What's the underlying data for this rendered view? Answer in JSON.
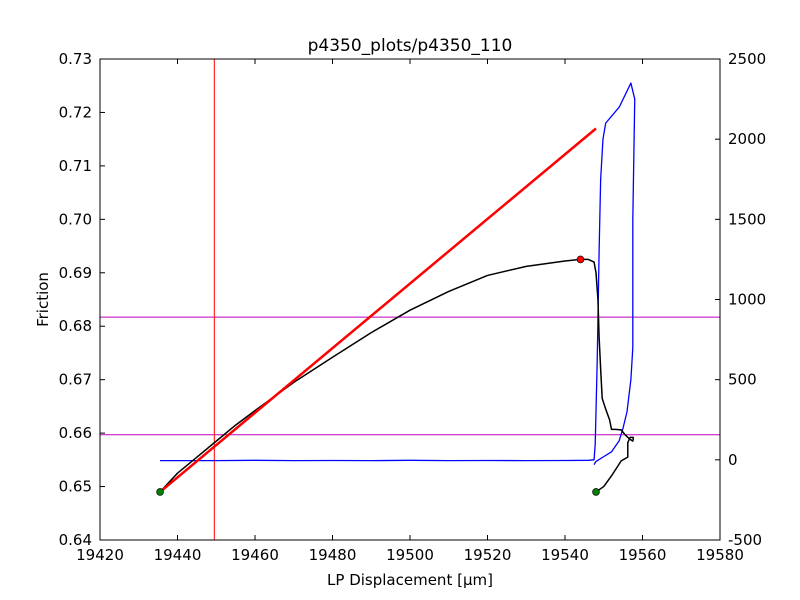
{
  "chart_data": {
    "type": "line",
    "title": "p4350_plots/p4350_110",
    "xlabel": "LP Displacement [μm]",
    "ylabel": "Friction",
    "xlim": [
      19420,
      19580
    ],
    "ylim": [
      0.64,
      0.73
    ],
    "y2lim": [
      -500,
      2500
    ],
    "xticks": [
      19420,
      19440,
      19460,
      19480,
      19500,
      19520,
      19540,
      19560,
      19580
    ],
    "yticks": [
      "0.64",
      "0.65",
      "0.66",
      "0.67",
      "0.68",
      "0.69",
      "0.70",
      "0.71",
      "0.72",
      "0.73"
    ],
    "y2ticks": [
      -500,
      0,
      500,
      1000,
      1500,
      2000,
      2500
    ],
    "grid": false,
    "colors": {
      "friction": "#000000",
      "secondary": "#0000ff",
      "fit_line": "#ff0000",
      "vertical_marker": "#ff0000",
      "horizontal_markers": "#bf00bf",
      "start_points": "#007f00",
      "peak_point": "#ff0000"
    },
    "series": [
      {
        "axis": "left",
        "color": "#000000",
        "points": [
          [
            19435.5,
            0.649
          ],
          [
            19440,
            0.6525
          ],
          [
            19445,
            0.6555
          ],
          [
            19450,
            0.6585
          ],
          [
            19455,
            0.6615
          ],
          [
            19460,
            0.6642
          ],
          [
            19470,
            0.6695
          ],
          [
            19480,
            0.6742
          ],
          [
            19490,
            0.6788
          ],
          [
            19500,
            0.683
          ],
          [
            19510,
            0.6865
          ],
          [
            19520,
            0.6895
          ],
          [
            19530,
            0.6912
          ],
          [
            19540,
            0.6922
          ],
          [
            19544,
            0.6925
          ],
          [
            19546,
            0.6925
          ],
          [
            19547.5,
            0.692
          ],
          [
            19548,
            0.69
          ],
          [
            19548.5,
            0.685
          ],
          [
            19548.8,
            0.678
          ],
          [
            19549.2,
            0.672
          ],
          [
            19549.6,
            0.6665
          ],
          [
            19550.5,
            0.6645
          ],
          [
            19551.5,
            0.6625
          ],
          [
            19552,
            0.6607
          ],
          [
            19553,
            0.6607
          ],
          [
            19554.5,
            0.6606
          ],
          [
            19555.5,
            0.6597
          ],
          [
            19556.5,
            0.659
          ],
          [
            19557.5,
            0.6585
          ],
          [
            19557.6,
            0.6588
          ],
          [
            19557.6,
            0.6592
          ],
          [
            19556.8,
            0.6592
          ],
          [
            19556.2,
            0.6582
          ],
          [
            19556.2,
            0.6555
          ],
          [
            19554.5,
            0.6548
          ],
          [
            19552,
            0.652
          ],
          [
            19550,
            0.65
          ],
          [
            19548,
            0.649
          ]
        ]
      },
      {
        "axis": "right",
        "color": "#0000ff",
        "points": [
          [
            19435.5,
            -5
          ],
          [
            19440,
            -5
          ],
          [
            19450,
            -5
          ],
          [
            19460,
            -3
          ],
          [
            19470,
            -5
          ],
          [
            19480,
            -4
          ],
          [
            19490,
            -5
          ],
          [
            19500,
            -3
          ],
          [
            19510,
            -5
          ],
          [
            19520,
            -4
          ],
          [
            19530,
            -5
          ],
          [
            19540,
            -4
          ],
          [
            19546,
            -3
          ],
          [
            19547.5,
            0
          ],
          [
            19547.8,
            100
          ],
          [
            19548.3,
            600
          ],
          [
            19548.8,
            1300
          ],
          [
            19549.2,
            1750
          ],
          [
            19549.8,
            2000
          ],
          [
            19550.5,
            2100
          ],
          [
            19554,
            2200
          ],
          [
            19557,
            2350
          ],
          [
            19558,
            2250
          ],
          [
            19557.5,
            1500
          ],
          [
            19557.5,
            700
          ],
          [
            19557,
            500
          ],
          [
            19556.5,
            400
          ],
          [
            19556,
            300
          ],
          [
            19555,
            200
          ],
          [
            19554,
            120
          ],
          [
            19552,
            50
          ],
          [
            19550,
            20
          ],
          [
            19548,
            -10
          ],
          [
            19547.5,
            -30
          ]
        ]
      },
      {
        "axis": "left",
        "color": "#ff0000",
        "points": [
          [
            19435.5,
            0.649
          ],
          [
            19548,
            0.717
          ]
        ]
      }
    ],
    "vertical_lines": [
      19449.5
    ],
    "horizontal_lines": [
      0.6597,
      0.6817
    ],
    "markers": [
      {
        "x": 19435.5,
        "y": 0.649,
        "color": "#007f00"
      },
      {
        "x": 19548,
        "y": 0.649,
        "color": "#007f00"
      },
      {
        "x": 19544,
        "y": 0.6925,
        "color": "#ff0000"
      }
    ]
  }
}
